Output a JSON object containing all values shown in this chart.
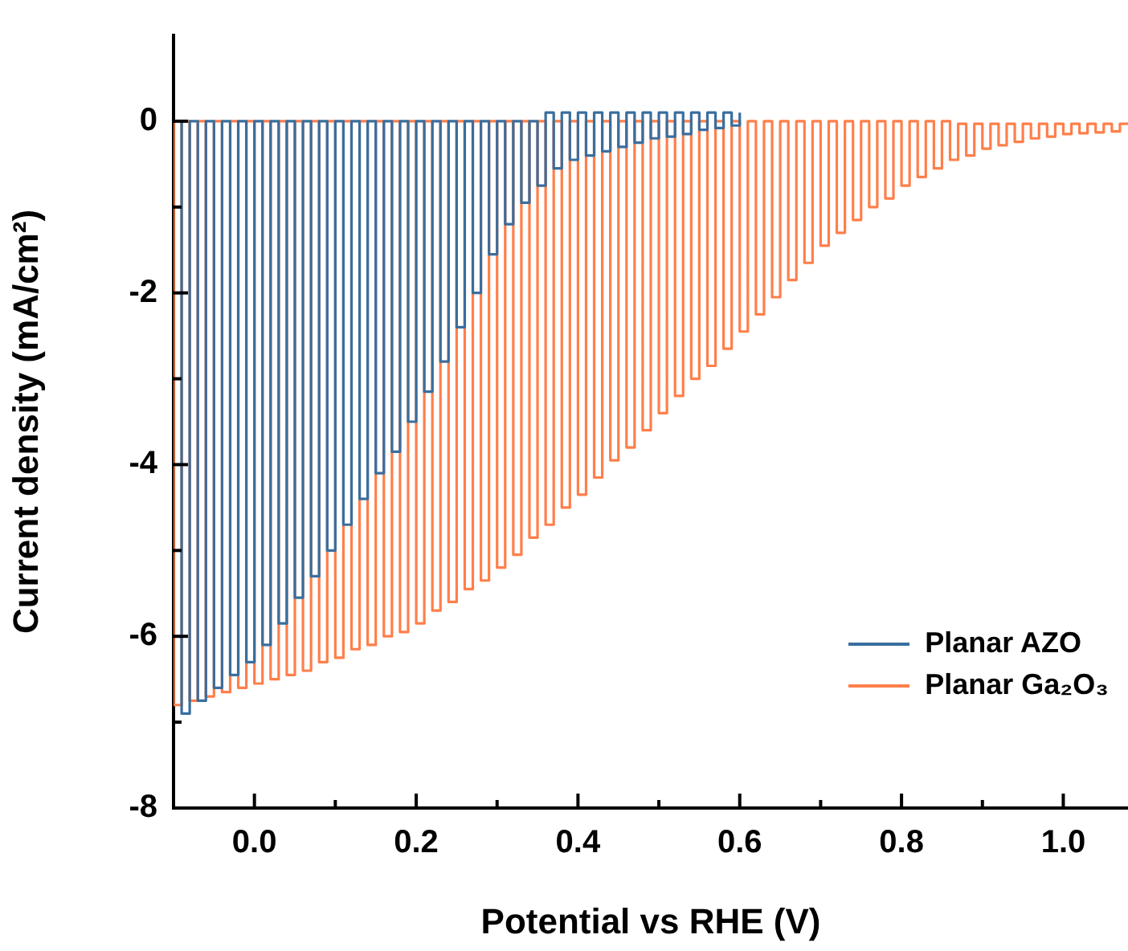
{
  "chart_data": {
    "type": "line",
    "xlabel": "Potential vs RHE (V)",
    "ylabel": "Current density (mA/cm²)",
    "xlim": [
      -0.1,
      1.08
    ],
    "ylim": [
      -8,
      1
    ],
    "xticks": [
      {
        "value": 0,
        "label": "0.0"
      },
      {
        "value": 0.1,
        "label": null
      },
      {
        "value": 0.2,
        "label": "0.2"
      },
      {
        "value": 0.3,
        "label": null
      },
      {
        "value": 0.4,
        "label": "0.4"
      },
      {
        "value": 0.5,
        "label": null
      },
      {
        "value": 0.6,
        "label": "0.6"
      },
      {
        "value": 0.7,
        "label": null
      },
      {
        "value": 0.8,
        "label": "0.8"
      },
      {
        "value": 0.9,
        "label": null
      },
      {
        "value": 1,
        "label": "1.0"
      }
    ],
    "yticks": [
      -8,
      {
        "value": -7,
        "label": null
      },
      -6,
      {
        "value": -5,
        "label": null
      },
      -4,
      {
        "value": -3,
        "label": null
      },
      -2,
      {
        "value": -1,
        "label": null
      },
      0
    ],
    "legend": "bottom right",
    "grid": false,
    "series": [
      {
        "name": "Planar AZO",
        "color": "#3a6e9e",
        "x": [
          -0.09,
          -0.09,
          -0.08,
          -0.08,
          -0.07,
          -0.07,
          -0.06,
          -0.06,
          -0.05,
          -0.05,
          -0.04,
          -0.04,
          -0.03,
          -0.03,
          -0.02,
          -0.02,
          -0.01,
          -0.01,
          0,
          0,
          0.01,
          0.01,
          0.02,
          0.02,
          0.03,
          0.03,
          0.04,
          0.04,
          0.05,
          0.05,
          0.06,
          0.06,
          0.07,
          0.07,
          0.08,
          0.08,
          0.09,
          0.09,
          0.1,
          0.1,
          0.11,
          0.11,
          0.12,
          0.12,
          0.13,
          0.13,
          0.14,
          0.14,
          0.15,
          0.15,
          0.16,
          0.16,
          0.17,
          0.17,
          0.18,
          0.18,
          0.19,
          0.19,
          0.2,
          0.2,
          0.21,
          0.21,
          0.22,
          0.22,
          0.23,
          0.23,
          0.24,
          0.24,
          0.25,
          0.25,
          0.26,
          0.26,
          0.27,
          0.27,
          0.28,
          0.28,
          0.29,
          0.29,
          0.3,
          0.3,
          0.31,
          0.31,
          0.32,
          0.32,
          0.33,
          0.33,
          0.34,
          0.34,
          0.35,
          0.35,
          0.36,
          0.36,
          0.37,
          0.37,
          0.38,
          0.38,
          0.39,
          0.39,
          0.4,
          0.4,
          0.41,
          0.41,
          0.42,
          0.42,
          0.43,
          0.43,
          0.44,
          0.44,
          0.45,
          0.45,
          0.46,
          0.46,
          0.47,
          0.47,
          0.48,
          0.48,
          0.49,
          0.49,
          0.5,
          0.5,
          0.51,
          0.51,
          0.52,
          0.52,
          0.53,
          0.53,
          0.54,
          0.54,
          0.55,
          0.55,
          0.56,
          0.56,
          0.57,
          0.57,
          0.58,
          0.58,
          0.59,
          0.59,
          0.6,
          0.6
        ],
        "values": [
          0,
          -6.9,
          -6.9,
          0,
          0,
          -6.75,
          -6.75,
          0,
          0,
          -6.6,
          -6.6,
          0,
          0,
          -6.45,
          -6.45,
          0,
          0,
          -6.3,
          -6.3,
          0,
          0,
          -6.1,
          -6.1,
          0,
          0,
          -5.85,
          -5.85,
          0,
          0,
          -5.55,
          -5.55,
          0,
          0,
          -5.3,
          -5.3,
          0,
          0,
          -5.0,
          -5.0,
          0,
          0,
          -4.7,
          -4.7,
          0,
          0,
          -4.4,
          -4.4,
          0,
          0,
          -4.1,
          -4.1,
          0,
          0,
          -3.85,
          -3.85,
          0,
          0,
          -3.5,
          -3.5,
          0,
          0,
          -3.15,
          -3.15,
          0,
          0,
          -2.8,
          -2.8,
          0,
          0,
          -2.4,
          -2.4,
          0,
          0,
          -2.0,
          -2.0,
          0,
          0,
          -1.55,
          -1.55,
          0,
          0,
          -1.2,
          -1.2,
          0,
          0,
          -0.95,
          -0.95,
          0,
          0,
          -0.75,
          -0.75,
          0.1,
          0.1,
          -0.55,
          -0.55,
          0.1,
          0.1,
          -0.45,
          -0.45,
          0.1,
          0.1,
          -0.4,
          -0.4,
          0.1,
          0.1,
          -0.35,
          -0.35,
          0.1,
          0.1,
          -0.3,
          -0.3,
          0.1,
          0.1,
          -0.25,
          -0.25,
          0.1,
          0.1,
          -0.2,
          -0.2,
          0.1,
          0.1,
          -0.18,
          -0.18,
          0.1,
          0.1,
          -0.15,
          -0.15,
          0.1,
          0.1,
          -0.1,
          -0.1,
          0.1,
          0.1,
          -0.08,
          -0.08,
          0.1,
          0.1,
          -0.05,
          -0.05,
          0.1
        ]
      },
      {
        "name": "Planar Ga₂O₃",
        "color": "#ff7f4a",
        "x": [
          -0.1,
          -0.1,
          -0.09,
          -0.09,
          -0.08,
          -0.08,
          -0.07,
          -0.07,
          -0.06,
          -0.06,
          -0.05,
          -0.05,
          -0.04,
          -0.04,
          -0.03,
          -0.03,
          -0.02,
          -0.02,
          -0.01,
          -0.01,
          0,
          0,
          0.01,
          0.01,
          0.02,
          0.02,
          0.03,
          0.03,
          0.04,
          0.04,
          0.05,
          0.05,
          0.06,
          0.06,
          0.07,
          0.07,
          0.08,
          0.08,
          0.09,
          0.09,
          0.1,
          0.1,
          0.11,
          0.11,
          0.12,
          0.12,
          0.13,
          0.13,
          0.14,
          0.14,
          0.15,
          0.15,
          0.16,
          0.16,
          0.17,
          0.17,
          0.18,
          0.18,
          0.19,
          0.19,
          0.2,
          0.2,
          0.21,
          0.21,
          0.22,
          0.22,
          0.23,
          0.23,
          0.24,
          0.24,
          0.25,
          0.25,
          0.26,
          0.26,
          0.27,
          0.27,
          0.28,
          0.28,
          0.29,
          0.29,
          0.3,
          0.3,
          0.31,
          0.31,
          0.32,
          0.32,
          0.33,
          0.33,
          0.34,
          0.34,
          0.35,
          0.35,
          0.36,
          0.36,
          0.37,
          0.37,
          0.38,
          0.38,
          0.39,
          0.39,
          0.4,
          0.4,
          0.41,
          0.41,
          0.42,
          0.42,
          0.43,
          0.43,
          0.44,
          0.44,
          0.45,
          0.45,
          0.46,
          0.46,
          0.47,
          0.47,
          0.48,
          0.48,
          0.49,
          0.49,
          0.5,
          0.5,
          0.51,
          0.51,
          0.52,
          0.52,
          0.53,
          0.53,
          0.54,
          0.54,
          0.55,
          0.55,
          0.56,
          0.56,
          0.57,
          0.57,
          0.58,
          0.58,
          0.59,
          0.59,
          0.6,
          0.6,
          0.61,
          0.61,
          0.62,
          0.62,
          0.63,
          0.63,
          0.64,
          0.64,
          0.65,
          0.65,
          0.66,
          0.66,
          0.67,
          0.67,
          0.68,
          0.68,
          0.69,
          0.69,
          0.7,
          0.7,
          0.71,
          0.71,
          0.72,
          0.72,
          0.73,
          0.73,
          0.74,
          0.74,
          0.75,
          0.75,
          0.76,
          0.76,
          0.77,
          0.77,
          0.78,
          0.78,
          0.79,
          0.79,
          0.8,
          0.8,
          0.81,
          0.81,
          0.82,
          0.82,
          0.83,
          0.83,
          0.84,
          0.84,
          0.85,
          0.85,
          0.86,
          0.86,
          0.87,
          0.87,
          0.88,
          0.88,
          0.89,
          0.89,
          0.9,
          0.9,
          0.91,
          0.91,
          0.92,
          0.92,
          0.93,
          0.93,
          0.94,
          0.94,
          0.95,
          0.95,
          0.96,
          0.96,
          0.97,
          0.97,
          0.98,
          0.98,
          0.99,
          0.99,
          1,
          1,
          1.01,
          1.01,
          1.02,
          1.02,
          1.03,
          1.03,
          1.04,
          1.04,
          1.05,
          1.05,
          1.06,
          1.06,
          1.07,
          1.07,
          1.08
        ],
        "values": [
          0,
          -6.8,
          -6.8,
          0,
          0,
          -6.75,
          -6.75,
          0,
          0,
          -6.7,
          -6.7,
          0,
          0,
          -6.65,
          -6.65,
          0,
          0,
          -6.6,
          -6.6,
          0,
          0,
          -6.55,
          -6.55,
          0,
          0,
          -6.5,
          -6.5,
          0,
          0,
          -6.45,
          -6.45,
          0,
          0,
          -6.4,
          -6.4,
          0,
          0,
          -6.3,
          -6.3,
          0,
          0,
          -6.25,
          -6.25,
          0,
          0,
          -6.15,
          -6.15,
          0,
          0,
          -6.1,
          -6.1,
          0,
          0,
          -6.0,
          -6.0,
          0,
          0,
          -5.95,
          -5.95,
          0,
          0,
          -5.85,
          -5.85,
          0,
          0,
          -5.7,
          -5.7,
          0,
          0,
          -5.6,
          -5.6,
          0,
          0,
          -5.45,
          -5.45,
          0,
          0,
          -5.35,
          -5.35,
          0,
          0,
          -5.2,
          -5.2,
          0,
          0,
          -5.05,
          -5.05,
          0,
          0,
          -4.85,
          -4.85,
          0,
          0,
          -4.7,
          -4.7,
          0,
          0,
          -4.5,
          -4.5,
          0,
          0,
          -4.35,
          -4.35,
          0,
          0,
          -4.15,
          -4.15,
          0,
          0,
          -3.95,
          -3.95,
          0,
          0,
          -3.8,
          -3.8,
          0,
          0,
          -3.6,
          -3.6,
          0,
          0,
          -3.4,
          -3.4,
          0,
          0,
          -3.2,
          -3.2,
          0,
          0,
          -3.0,
          -3.0,
          0,
          0,
          -2.85,
          -2.85,
          0,
          0,
          -2.65,
          -2.65,
          0,
          0,
          -2.45,
          -2.45,
          0,
          0,
          -2.25,
          -2.25,
          0,
          0,
          -2.05,
          -2.05,
          0,
          0,
          -1.85,
          -1.85,
          0,
          0,
          -1.65,
          -1.65,
          0,
          0,
          -1.45,
          -1.45,
          0,
          0,
          -1.3,
          -1.3,
          0,
          0,
          -1.15,
          -1.15,
          0,
          0,
          -1.0,
          -1.0,
          0,
          0,
          -0.9,
          -0.9,
          0,
          0,
          -0.75,
          -0.75,
          0,
          0,
          -0.65,
          -0.65,
          0,
          0,
          -0.55,
          -0.55,
          0,
          0,
          -0.45,
          -0.45,
          -0.03,
          -0.03,
          -0.4,
          -0.4,
          -0.03,
          -0.03,
          -0.32,
          -0.32,
          -0.03,
          -0.03,
          -0.28,
          -0.28,
          -0.03,
          -0.03,
          -0.24,
          -0.24,
          -0.03,
          -0.03,
          -0.2,
          -0.2,
          -0.03,
          -0.03,
          -0.18,
          -0.18,
          -0.03,
          -0.03,
          -0.15,
          -0.15,
          -0.03,
          -0.03,
          -0.14,
          -0.14,
          -0.03,
          -0.03,
          -0.13,
          -0.13,
          -0.03,
          -0.03,
          -0.12,
          -0.12,
          -0.03,
          -0.03
        ]
      }
    ]
  }
}
